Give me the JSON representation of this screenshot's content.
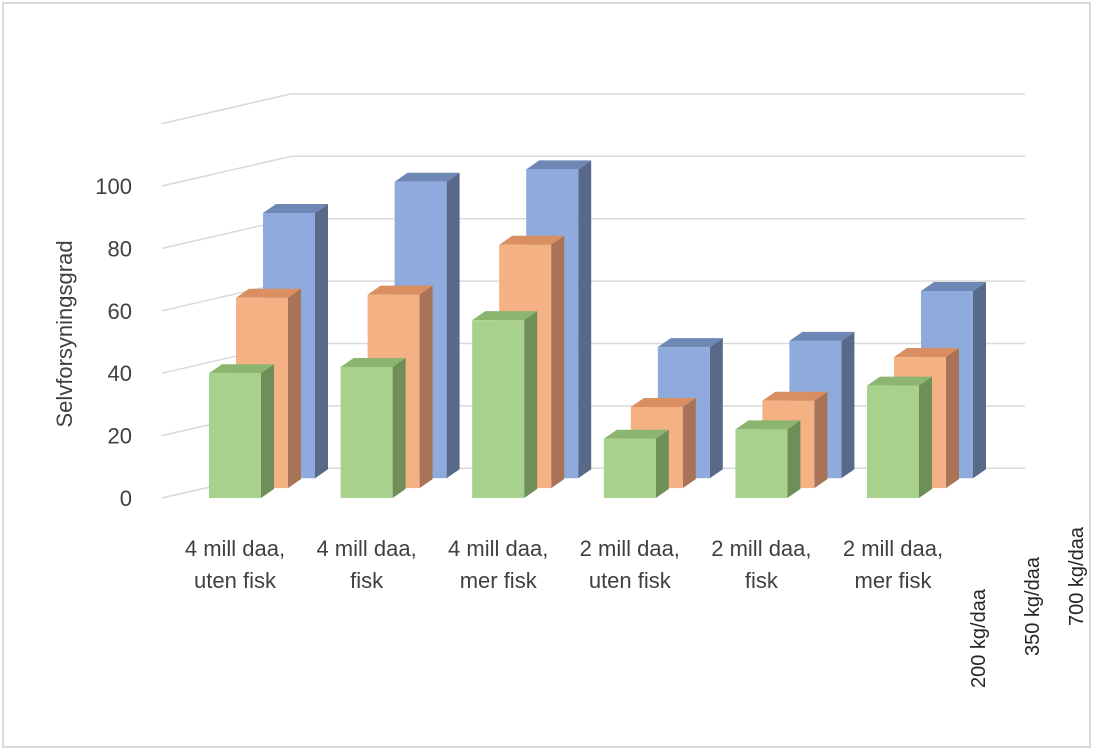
{
  "chart_data": {
    "type": "bar",
    "subtype": "3d-column",
    "categories": [
      [
        "4 mill daa,",
        "uten fisk"
      ],
      [
        "4 mill daa,",
        "fisk"
      ],
      [
        "4 mill daa,",
        "mer fisk"
      ],
      [
        "2 mill daa,",
        "uten fisk"
      ],
      [
        "2 mill daa,",
        "fisk"
      ],
      [
        "2 mill daa,",
        "mer fisk"
      ]
    ],
    "series": [
      {
        "name": "200 kg/daa",
        "values": [
          40,
          42,
          57,
          19,
          22,
          36
        ],
        "color": "#a9d18e",
        "side": "#6e8f57",
        "top": "#8cb66f"
      },
      {
        "name": "350 kg/daa",
        "values": [
          61,
          62,
          78,
          26,
          28,
          42
        ],
        "color": "#f4b183",
        "side": "#a87356",
        "top": "#d98f61"
      },
      {
        "name": "700 kg/daa",
        "values": [
          85,
          95,
          99,
          42,
          44,
          60
        ],
        "color": "#8faadc",
        "side": "#59698a",
        "top": "#6f87b5"
      }
    ],
    "ylabel": "Selvforsyningsgrad",
    "yticks": [
      0,
      20,
      40,
      60,
      80,
      100
    ],
    "ylim": [
      0,
      100
    ],
    "grid": true,
    "legend": "depth-axis-labels"
  }
}
